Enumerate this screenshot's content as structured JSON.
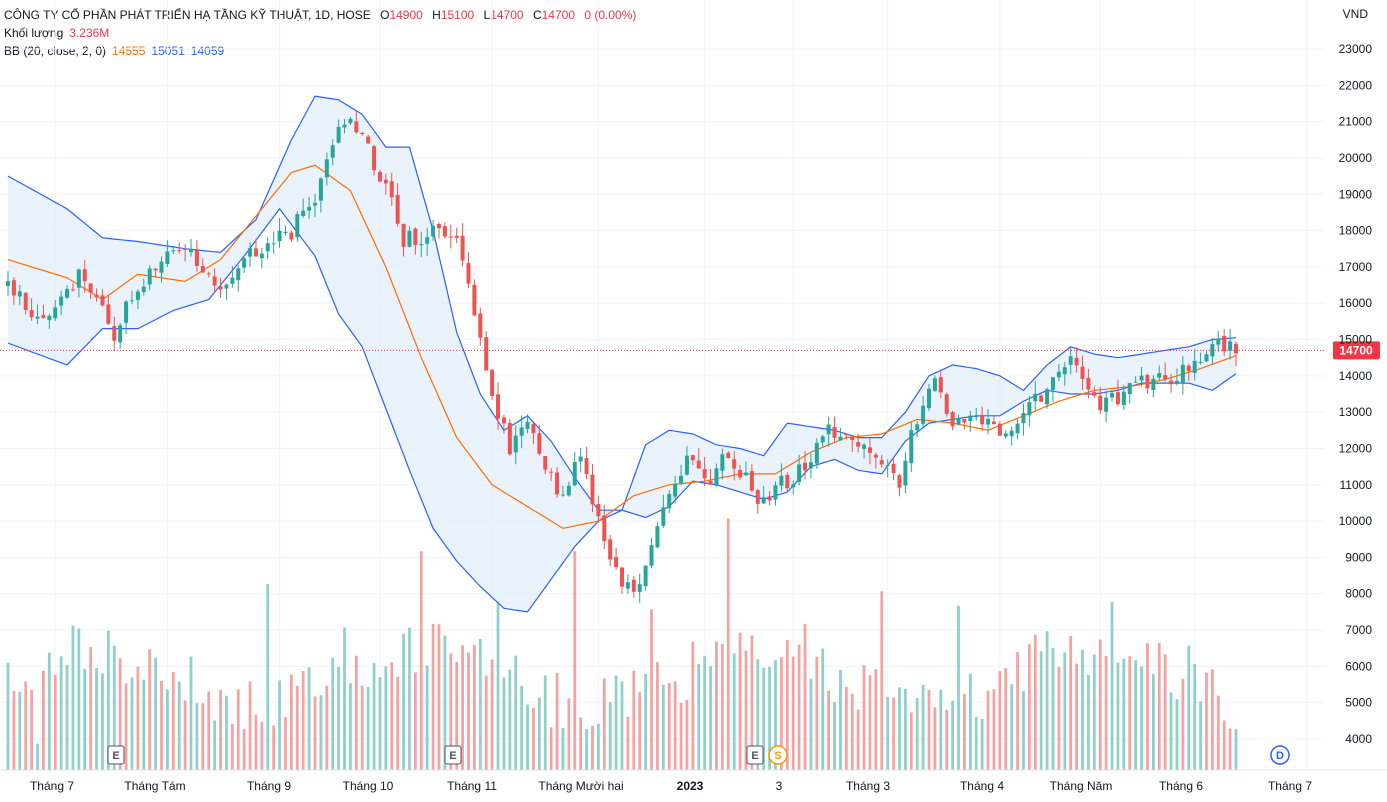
{
  "legend": {
    "title": "CÔNG TY CỔ PHẦN PHÁT TRIỂN HẠ TẦNG KỸ THUẬT, 1D, HOSE",
    "o_label": "O",
    "o": "14900",
    "h_label": "H",
    "h": "15100",
    "l_label": "L",
    "l": "14700",
    "c_label": "C",
    "c": "14700",
    "chg": "0 (0.00%)",
    "vol_label": "Khối lượng",
    "vol": "3.236M",
    "bb_label": "BB (20, close, 2, 0)",
    "bb_mid": "14555",
    "bb_upper": "15051",
    "bb_lower": "14059"
  },
  "axis": {
    "currency": "VND",
    "y_ticks": [
      "23000",
      "22000",
      "21000",
      "20000",
      "19000",
      "18000",
      "17000",
      "16000",
      "15000",
      "14000",
      "13000",
      "12000",
      "11000",
      "10000",
      "9000",
      "8000",
      "7000",
      "6000",
      "5000",
      "4000"
    ],
    "x_ticks": [
      "Tháng 7",
      "Tháng Tám",
      "Tháng 9",
      "Tháng 10",
      "Tháng 11",
      "Tháng Mười hai",
      "2023",
      "3",
      "Tháng 3",
      "Tháng 4",
      "Tháng Năm",
      "Tháng 6",
      "Tháng 7"
    ],
    "last_price": "14700"
  },
  "events": [
    {
      "type": "earnings",
      "label": "E"
    },
    {
      "type": "earnings",
      "label": "E"
    },
    {
      "type": "earnings",
      "label": "E"
    },
    {
      "type": "split",
      "label": "S"
    },
    {
      "type": "dividend",
      "label": "D"
    }
  ],
  "colors": {
    "up": "#26a69a",
    "down": "#ef5350",
    "vol_up": "#8fd1c8",
    "vol_down": "#f4a3a3",
    "bb_band": "#2962ff",
    "bb_basis": "#ff6d00",
    "bb_fill": "#e3eefa",
    "price_line": "#f23645"
  },
  "chart_data": {
    "type": "candlestick",
    "title": "CÔNG TY CỔ PHẦN PHÁT TRIỂN HẠ TẦNG KỸ THUẬT, 1D, HOSE",
    "ylabel": "VND",
    "ylim": [
      3000,
      23600
    ],
    "x": [
      "Tháng 7",
      "Tháng Tám",
      "Tháng 9",
      "Tháng 10",
      "Tháng 11",
      "Tháng Mười hai",
      "2023",
      "3",
      "Tháng 3",
      "Tháng 4",
      "Tháng Năm",
      "Tháng 6"
    ],
    "close_path": [
      [
        0,
        16500
      ],
      [
        6,
        15400
      ],
      [
        12,
        16800
      ],
      [
        18,
        15200
      ],
      [
        24,
        17000
      ],
      [
        30,
        17600
      ],
      [
        36,
        16300
      ],
      [
        42,
        17500
      ],
      [
        48,
        18000
      ],
      [
        52,
        19000
      ],
      [
        55,
        20500
      ],
      [
        58,
        21000
      ],
      [
        61,
        20200
      ],
      [
        64,
        19200
      ],
      [
        67,
        17800
      ],
      [
        70,
        17700
      ],
      [
        73,
        18200
      ],
      [
        76,
        17800
      ],
      [
        79,
        15600
      ],
      [
        82,
        13600
      ],
      [
        85,
        12000
      ],
      [
        88,
        12800
      ],
      [
        91,
        11500
      ],
      [
        94,
        10700
      ],
      [
        97,
        11800
      ],
      [
        100,
        10000
      ],
      [
        103,
        8700
      ],
      [
        106,
        7900
      ],
      [
        109,
        9200
      ],
      [
        112,
        10700
      ],
      [
        115,
        11700
      ],
      [
        118,
        11000
      ],
      [
        121,
        11700
      ],
      [
        124,
        11400
      ],
      [
        127,
        10600
      ],
      [
        130,
        10900
      ],
      [
        133,
        11200
      ],
      [
        136,
        11700
      ],
      [
        139,
        12600
      ],
      [
        142,
        12300
      ],
      [
        145,
        11900
      ],
      [
        148,
        11700
      ],
      [
        151,
        11100
      ],
      [
        154,
        12900
      ],
      [
        157,
        13700
      ],
      [
        160,
        12500
      ],
      [
        163,
        12900
      ],
      [
        166,
        12700
      ],
      [
        169,
        12300
      ],
      [
        172,
        12800
      ],
      [
        175,
        13500
      ],
      [
        178,
        14100
      ],
      [
        181,
        14400
      ],
      [
        184,
        13300
      ],
      [
        187,
        13300
      ],
      [
        190,
        13700
      ],
      [
        193,
        13800
      ],
      [
        196,
        13900
      ],
      [
        199,
        14200
      ],
      [
        202,
        14500
      ],
      [
        205,
        14900
      ],
      [
        208,
        14700
      ]
    ],
    "bollinger": {
      "period": 20,
      "source": "close",
      "stddev": 2,
      "upper_path": [
        [
          0,
          19500
        ],
        [
          10,
          18600
        ],
        [
          16,
          17800
        ],
        [
          22,
          17700
        ],
        [
          30,
          17500
        ],
        [
          36,
          17400
        ],
        [
          42,
          18300
        ],
        [
          48,
          20500
        ],
        [
          52,
          21700
        ],
        [
          56,
          21600
        ],
        [
          60,
          21200
        ],
        [
          64,
          20300
        ],
        [
          68,
          20300
        ],
        [
          72,
          18000
        ],
        [
          76,
          15200
        ],
        [
          80,
          13500
        ],
        [
          84,
          12500
        ],
        [
          88,
          12900
        ],
        [
          92,
          12200
        ],
        [
          96,
          11200
        ],
        [
          100,
          10300
        ],
        [
          104,
          10300
        ],
        [
          108,
          12100
        ],
        [
          112,
          12500
        ],
        [
          116,
          12400
        ],
        [
          120,
          12100
        ],
        [
          124,
          12000
        ],
        [
          128,
          11800
        ],
        [
          132,
          12700
        ],
        [
          136,
          12600
        ],
        [
          140,
          12500
        ],
        [
          144,
          12300
        ],
        [
          148,
          12300
        ],
        [
          152,
          13000
        ],
        [
          156,
          14000
        ],
        [
          160,
          14300
        ],
        [
          164,
          14200
        ],
        [
          168,
          14000
        ],
        [
          172,
          13600
        ],
        [
          176,
          14300
        ],
        [
          180,
          14800
        ],
        [
          184,
          14600
        ],
        [
          188,
          14500
        ],
        [
          192,
          14600
        ],
        [
          196,
          14700
        ],
        [
          200,
          14800
        ],
        [
          204,
          15000
        ],
        [
          208,
          15050
        ]
      ],
      "basis_path": [
        [
          0,
          17200
        ],
        [
          10,
          16700
        ],
        [
          16,
          16100
        ],
        [
          22,
          16800
        ],
        [
          30,
          16600
        ],
        [
          36,
          17200
        ],
        [
          42,
          18400
        ],
        [
          48,
          19600
        ],
        [
          52,
          19800
        ],
        [
          58,
          19100
        ],
        [
          64,
          17000
        ],
        [
          70,
          14500
        ],
        [
          76,
          12300
        ],
        [
          82,
          11000
        ],
        [
          88,
          10400
        ],
        [
          94,
          9800
        ],
        [
          100,
          10000
        ],
        [
          106,
          10700
        ],
        [
          112,
          11000
        ],
        [
          118,
          11100
        ],
        [
          124,
          11300
        ],
        [
          130,
          11300
        ],
        [
          136,
          11900
        ],
        [
          142,
          12300
        ],
        [
          148,
          12400
        ],
        [
          154,
          12800
        ],
        [
          160,
          12700
        ],
        [
          166,
          12500
        ],
        [
          172,
          12900
        ],
        [
          178,
          13300
        ],
        [
          184,
          13600
        ],
        [
          190,
          13700
        ],
        [
          196,
          13900
        ],
        [
          202,
          14200
        ],
        [
          208,
          14555
        ]
      ],
      "lower_path": [
        [
          0,
          14900
        ],
        [
          10,
          14300
        ],
        [
          16,
          15300
        ],
        [
          22,
          15300
        ],
        [
          28,
          15800
        ],
        [
          34,
          16100
        ],
        [
          40,
          17300
        ],
        [
          46,
          18600
        ],
        [
          52,
          17300
        ],
        [
          56,
          15700
        ],
        [
          60,
          14800
        ],
        [
          64,
          13100
        ],
        [
          68,
          11400
        ],
        [
          72,
          9800
        ],
        [
          76,
          8900
        ],
        [
          80,
          8200
        ],
        [
          84,
          7600
        ],
        [
          88,
          7500
        ],
        [
          92,
          8400
        ],
        [
          96,
          9300
        ],
        [
          100,
          10000
        ],
        [
          104,
          10300
        ],
        [
          108,
          10100
        ],
        [
          112,
          10400
        ],
        [
          116,
          11100
        ],
        [
          120,
          11000
        ],
        [
          124,
          10800
        ],
        [
          128,
          10600
        ],
        [
          132,
          10800
        ],
        [
          136,
          11500
        ],
        [
          140,
          11700
        ],
        [
          144,
          11400
        ],
        [
          148,
          11300
        ],
        [
          152,
          12200
        ],
        [
          156,
          12700
        ],
        [
          160,
          12800
        ],
        [
          164,
          12900
        ],
        [
          168,
          12900
        ],
        [
          172,
          13300
        ],
        [
          176,
          13600
        ],
        [
          180,
          13500
        ],
        [
          184,
          13500
        ],
        [
          188,
          13600
        ],
        [
          192,
          13800
        ],
        [
          196,
          13800
        ],
        [
          200,
          13800
        ],
        [
          204,
          13600
        ],
        [
          208,
          14059
        ]
      ]
    },
    "volume_peaks_M": [
      2.5,
      5.2,
      4.9,
      6.9,
      5.7,
      7.8,
      6.4,
      7.8,
      6.2,
      8.7,
      5.8,
      6.7,
      6.3,
      5.5,
      6.4,
      5.2
    ]
  }
}
